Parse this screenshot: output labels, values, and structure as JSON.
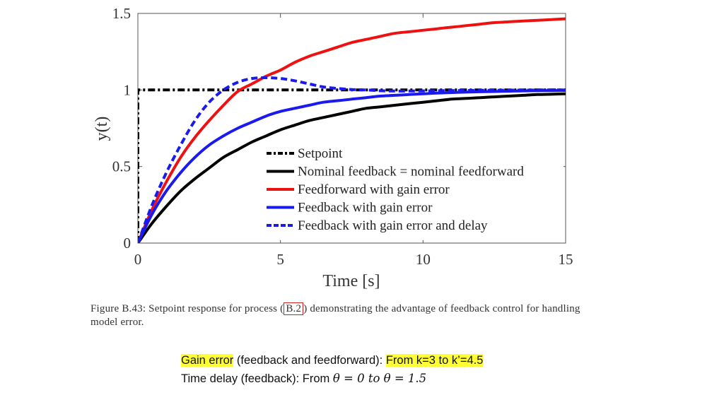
{
  "chart_data": {
    "type": "line",
    "xlabel": "Time [s]",
    "ylabel": "y(t)",
    "xlim": [
      0,
      15
    ],
    "ylim": [
      0,
      1.5
    ],
    "xticks": [
      "0",
      "5",
      "10",
      "15"
    ],
    "yticks": [
      "0",
      "0.5",
      "1",
      "1.5"
    ],
    "grid": false,
    "legend_position": "lower-right",
    "x": [
      0,
      0.5,
      1,
      1.5,
      2,
      2.5,
      3,
      3.5,
      4,
      4.5,
      5,
      5.5,
      6,
      6.5,
      7,
      7.5,
      8,
      8.5,
      9,
      9.5,
      10,
      10.5,
      11,
      11.5,
      12,
      12.5,
      13,
      13.5,
      14,
      14.5,
      15
    ],
    "series": [
      {
        "name": "Setpoint",
        "color": "#000000",
        "style": "dashdot",
        "values": [
          1,
          1,
          1,
          1,
          1,
          1,
          1,
          1,
          1,
          1,
          1,
          1,
          1,
          1,
          1,
          1,
          1,
          1,
          1,
          1,
          1,
          1,
          1,
          1,
          1,
          1,
          1,
          1,
          1,
          1,
          1
        ]
      },
      {
        "name": "Nominal feedback = nominal feedforward",
        "color": "#000000",
        "style": "solid",
        "values": [
          0,
          0.13,
          0.24,
          0.34,
          0.42,
          0.49,
          0.56,
          0.61,
          0.66,
          0.7,
          0.74,
          0.77,
          0.8,
          0.82,
          0.84,
          0.86,
          0.88,
          0.89,
          0.9,
          0.91,
          0.92,
          0.93,
          0.94,
          0.945,
          0.95,
          0.955,
          0.96,
          0.965,
          0.97,
          0.972,
          0.975
        ]
      },
      {
        "name": "Feedforward with gain error",
        "color": "#ee1111",
        "style": "solid",
        "values": [
          0,
          0.22,
          0.4,
          0.56,
          0.69,
          0.8,
          0.9,
          0.99,
          1.04,
          1.09,
          1.13,
          1.18,
          1.22,
          1.25,
          1.28,
          1.31,
          1.33,
          1.35,
          1.37,
          1.38,
          1.39,
          1.4,
          1.41,
          1.42,
          1.43,
          1.44,
          1.445,
          1.45,
          1.455,
          1.46,
          1.465
        ]
      },
      {
        "name": "Feedback with gain error",
        "color": "#1a1aee",
        "style": "solid",
        "values": [
          0,
          0.19,
          0.34,
          0.46,
          0.56,
          0.64,
          0.7,
          0.75,
          0.79,
          0.83,
          0.86,
          0.88,
          0.9,
          0.92,
          0.93,
          0.94,
          0.95,
          0.96,
          0.965,
          0.97,
          0.975,
          0.98,
          0.983,
          0.986,
          0.988,
          0.99,
          0.992,
          0.994,
          0.995,
          0.996,
          0.997
        ]
      },
      {
        "name": "Feedback with gain error and delay",
        "color": "#1a1aee",
        "style": "dashed",
        "values": [
          0,
          0.25,
          0.46,
          0.64,
          0.8,
          0.92,
          1.0,
          1.05,
          1.075,
          1.08,
          1.075,
          1.06,
          1.04,
          1.02,
          1.01,
          1.003,
          1.0,
          0.995,
          0.993,
          0.993,
          0.994,
          0.995,
          0.996,
          0.997,
          0.998,
          0.998,
          0.999,
          0.999,
          1.0,
          1.0,
          1.0
        ]
      }
    ]
  },
  "caption": {
    "prefix": "Figure B.43: Setpoint response for process (",
    "ref": "B.2",
    "suffix": ") demonstrating the advantage of feedback control for handling model error."
  },
  "notes": {
    "gain_error_label": "Gain error",
    "gain_error_scope": " (feedback and feedforward):  ",
    "gain_error_change": "From k=3 to k’=4.5",
    "delay_label": "Time delay (feedback): From ",
    "delay_change": "θ = 0 to θ = 1.5"
  }
}
